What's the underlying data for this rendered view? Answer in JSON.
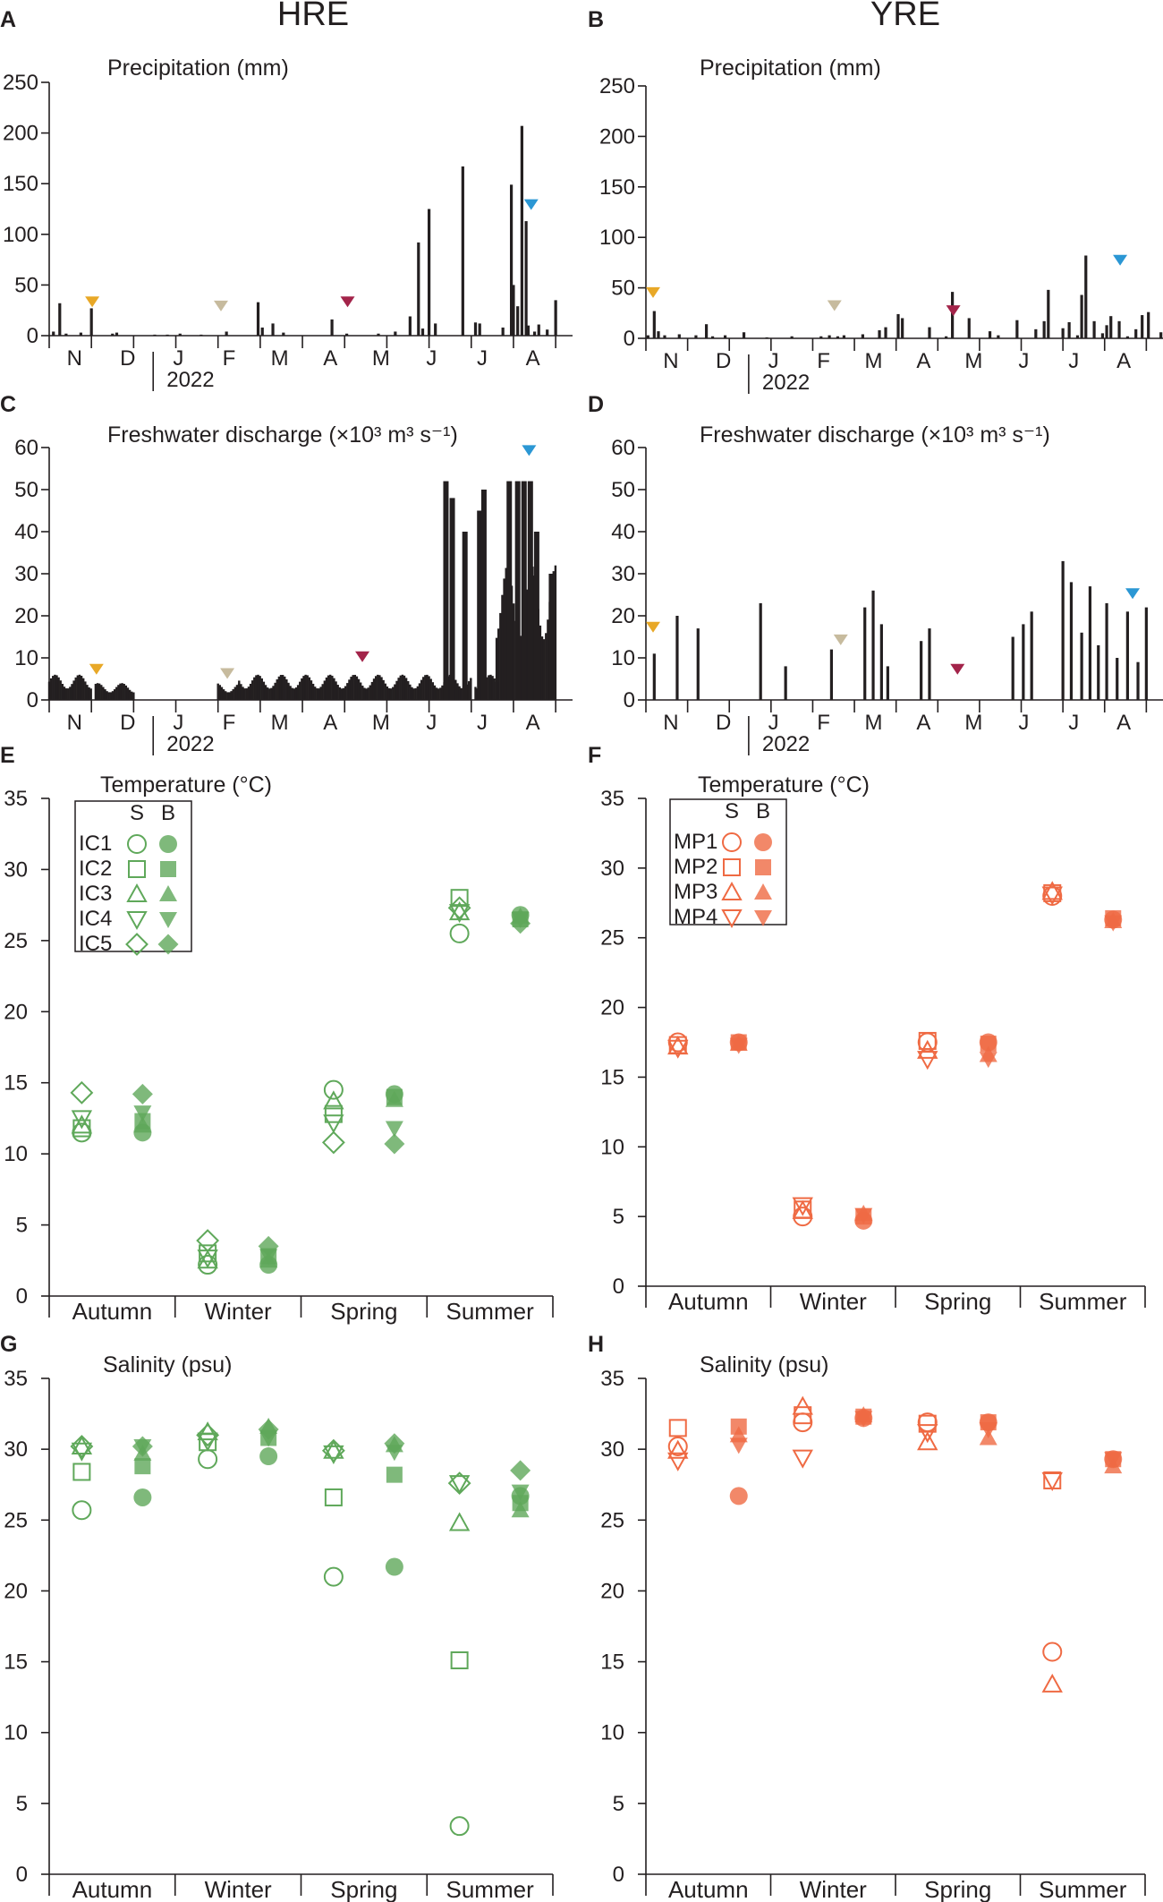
{
  "figure": {
    "site_titles": [
      "HRE",
      "YRE"
    ],
    "year_label": "2022",
    "months": [
      "N",
      "D",
      "J",
      "F",
      "M",
      "A",
      "M",
      "J",
      "J",
      "A"
    ],
    "seasons": [
      "Autumn",
      "Winter",
      "Spring",
      "Summer"
    ],
    "marker_columns": [
      "S",
      "B"
    ],
    "sampling_colors": {
      "autumn": "#e8a827",
      "winter": "#c7bb9e",
      "spring": "#a3244a",
      "summer": "#2b97d4"
    },
    "hre_color": "#5fa85a",
    "yre_color": "#ef6a43"
  },
  "chart_data": [
    {
      "panel": "A",
      "type": "bar",
      "site": "HRE",
      "title": "Precipitation (mm)",
      "ylim": [
        0,
        250
      ],
      "yticks": [
        0,
        50,
        100,
        150,
        200,
        250
      ],
      "x_unit": "month index (0 = start of November 2021)",
      "bars": [
        [
          0.1,
          4
        ],
        [
          0.25,
          32
        ],
        [
          0.4,
          2
        ],
        [
          0.75,
          3
        ],
        [
          1.0,
          27
        ],
        [
          1.5,
          2
        ],
        [
          1.6,
          3
        ],
        [
          2.5,
          1
        ],
        [
          2.8,
          1
        ],
        [
          3.1,
          2
        ],
        [
          3.6,
          1
        ],
        [
          4.2,
          4
        ],
        [
          4.95,
          33
        ],
        [
          5.05,
          8
        ],
        [
          5.3,
          12
        ],
        [
          5.55,
          3
        ],
        [
          6.7,
          16
        ],
        [
          7.05,
          2
        ],
        [
          7.8,
          2
        ],
        [
          8.2,
          4
        ],
        [
          8.55,
          19
        ],
        [
          8.75,
          92
        ],
        [
          8.85,
          7
        ],
        [
          9.0,
          125
        ],
        [
          9.15,
          12
        ],
        [
          9.8,
          167
        ],
        [
          10.1,
          13
        ],
        [
          10.2,
          12
        ],
        [
          10.75,
          8
        ],
        [
          10.95,
          149
        ],
        [
          11.0,
          50
        ],
        [
          11.1,
          29
        ],
        [
          11.2,
          207
        ],
        [
          11.3,
          113
        ],
        [
          11.35,
          10
        ],
        [
          11.5,
          4
        ],
        [
          11.6,
          11
        ],
        [
          11.8,
          6
        ],
        [
          12.0,
          35
        ]
      ],
      "sampling": [
        {
          "x": 0.85,
          "color": "autumn"
        },
        {
          "x": 3.9,
          "color": "winter"
        },
        {
          "x": 6.9,
          "color": "spring"
        },
        {
          "x": 11.25,
          "color": "summer"
        }
      ],
      "sampling_y": [
        28,
        24,
        28,
        124
      ]
    },
    {
      "panel": "B",
      "type": "bar",
      "site": "YRE",
      "title": "Precipitation (mm)",
      "ylim": [
        0,
        250
      ],
      "yticks": [
        0,
        50,
        100,
        150,
        200,
        250
      ],
      "bars": [
        [
          0.05,
          3
        ],
        [
          0.2,
          27
        ],
        [
          0.3,
          7
        ],
        [
          0.45,
          3
        ],
        [
          0.8,
          4
        ],
        [
          1.2,
          3
        ],
        [
          1.45,
          14
        ],
        [
          1.6,
          2
        ],
        [
          1.9,
          3
        ],
        [
          2.35,
          6
        ],
        [
          2.9,
          1
        ],
        [
          3.5,
          2
        ],
        [
          4.2,
          2
        ],
        [
          4.4,
          3
        ],
        [
          4.6,
          2
        ],
        [
          4.75,
          3
        ],
        [
          5.2,
          4
        ],
        [
          5.6,
          8
        ],
        [
          5.75,
          11
        ],
        [
          6.05,
          24
        ],
        [
          6.15,
          20
        ],
        [
          6.8,
          11
        ],
        [
          7.2,
          2
        ],
        [
          7.35,
          46
        ],
        [
          7.75,
          20
        ],
        [
          8.25,
          7
        ],
        [
          8.45,
          3
        ],
        [
          8.9,
          18
        ],
        [
          9.35,
          9
        ],
        [
          9.55,
          17
        ],
        [
          9.65,
          48
        ],
        [
          10.0,
          10
        ],
        [
          10.15,
          16
        ],
        [
          10.35,
          3
        ],
        [
          10.45,
          43
        ],
        [
          10.55,
          82
        ],
        [
          10.75,
          17
        ],
        [
          10.95,
          5
        ],
        [
          11.05,
          13
        ],
        [
          11.15,
          22
        ],
        [
          11.35,
          17
        ],
        [
          11.55,
          2
        ],
        [
          11.75,
          9
        ],
        [
          11.9,
          23
        ],
        [
          12.05,
          26
        ],
        [
          12.35,
          6
        ]
      ],
      "sampling": [
        {
          "x": 0.0,
          "color": "autumn"
        },
        {
          "x": 4.35,
          "color": "winter"
        },
        {
          "x": 7.2,
          "color": "spring"
        },
        {
          "x": 11.2,
          "color": "summer"
        }
      ],
      "sampling_y": [
        40,
        27,
        22,
        72
      ]
    },
    {
      "panel": "C",
      "type": "bar",
      "site": "HRE",
      "title": "Freshwater discharge (×10³ m³ s⁻¹)",
      "ylim": [
        0,
        60
      ],
      "yticks": [
        0,
        10,
        20,
        30,
        40,
        50,
        60
      ],
      "segments": [
        [
          0.0,
          1.0,
          6
        ],
        [
          1.1,
          2.0,
          4
        ],
        [
          4.0,
          4.5,
          4
        ],
        [
          4.5,
          10.0,
          6
        ],
        [
          10.1,
          10.6,
          6
        ],
        [
          10.6,
          12.0,
          32
        ]
      ],
      "peaks": [
        [
          9.4,
          52
        ],
        [
          9.55,
          48
        ],
        [
          9.85,
          40
        ],
        [
          10.2,
          45
        ],
        [
          10.3,
          50
        ],
        [
          10.9,
          52
        ],
        [
          11.1,
          52
        ],
        [
          11.25,
          52
        ],
        [
          11.4,
          52
        ],
        [
          11.55,
          40
        ],
        [
          11.9,
          30
        ]
      ],
      "sampling": [
        {
          "x": 0.95,
          "color": "autumn"
        },
        {
          "x": 4.05,
          "color": "winter"
        },
        {
          "x": 7.25,
          "color": "spring"
        },
        {
          "x": 11.2,
          "color": "summer"
        }
      ],
      "sampling_y": [
        6,
        5,
        9,
        58
      ]
    },
    {
      "panel": "D",
      "type": "bar",
      "site": "YRE",
      "title": "Freshwater discharge (×10³ m³ s⁻¹)",
      "ylim": [
        0,
        60
      ],
      "yticks": [
        0,
        10,
        20,
        30,
        40,
        50,
        60
      ],
      "bars": [
        [
          0.2,
          11
        ],
        [
          0.75,
          20
        ],
        [
          1.25,
          17
        ],
        [
          2.75,
          23
        ],
        [
          3.35,
          8
        ],
        [
          4.45,
          12
        ],
        [
          5.25,
          22
        ],
        [
          5.45,
          26
        ],
        [
          5.65,
          18
        ],
        [
          5.8,
          8
        ],
        [
          6.6,
          14
        ],
        [
          6.8,
          17
        ],
        [
          8.8,
          15
        ],
        [
          9.05,
          18
        ],
        [
          9.25,
          21
        ],
        [
          10.0,
          33
        ],
        [
          10.2,
          28
        ],
        [
          10.45,
          16
        ],
        [
          10.65,
          27
        ],
        [
          10.85,
          13
        ],
        [
          11.05,
          23
        ],
        [
          11.3,
          10
        ],
        [
          11.55,
          21
        ],
        [
          11.8,
          9
        ],
        [
          12.0,
          22
        ]
      ],
      "sampling": [
        {
          "x": 0.0,
          "color": "autumn"
        },
        {
          "x": 4.5,
          "color": "winter"
        },
        {
          "x": 7.3,
          "color": "spring"
        },
        {
          "x": 11.5,
          "color": "summer"
        }
      ],
      "sampling_y": [
        16,
        13,
        6,
        24
      ]
    },
    {
      "panel": "E",
      "type": "scatter",
      "site": "HRE",
      "title": "Temperature (°C)",
      "ylim": [
        0,
        35
      ],
      "yticks": [
        0,
        5,
        10,
        15,
        20,
        25,
        30,
        35
      ],
      "series_labels": [
        "IC1",
        "IC2",
        "IC3",
        "IC4",
        "IC5"
      ],
      "S": [
        [
          11.5,
          2.2,
          14.5,
          25.5
        ],
        [
          11.8,
          3.0,
          12.8,
          28.0
        ],
        [
          12.0,
          2.5,
          13.7,
          27.0
        ],
        [
          12.5,
          2.7,
          12.2,
          27.0
        ],
        [
          14.3,
          3.9,
          10.8,
          27.3
        ]
      ],
      "B": [
        [
          11.5,
          2.2,
          14.2,
          26.8
        ],
        [
          12.3,
          2.8,
          14.0,
          26.5
        ],
        [
          12.0,
          2.5,
          13.8,
          26.7
        ],
        [
          12.9,
          2.8,
          11.8,
          26.5
        ],
        [
          14.2,
          3.5,
          10.7,
          26.2
        ]
      ]
    },
    {
      "panel": "F",
      "type": "scatter",
      "site": "YRE",
      "title": "Temperature (°C)",
      "ylim": [
        0,
        35
      ],
      "yticks": [
        0,
        5,
        10,
        15,
        20,
        25,
        30,
        35
      ],
      "series_labels": [
        "MP1",
        "MP2",
        "MP3",
        "MP4"
      ],
      "S": [
        [
          17.5,
          5.0,
          17.5,
          28.0
        ],
        [
          17.3,
          5.5,
          17.6,
          28.2
        ],
        [
          17.2,
          5.4,
          16.9,
          28.3
        ],
        [
          17.1,
          5.8,
          16.3,
          28.1
        ]
      ],
      "B": [
        [
          17.5,
          4.7,
          17.5,
          26.3
        ],
        [
          17.5,
          5.0,
          17.4,
          26.4
        ],
        [
          17.4,
          5.2,
          16.6,
          26.2
        ],
        [
          17.3,
          5.1,
          16.3,
          26.1
        ]
      ]
    },
    {
      "panel": "G",
      "type": "scatter",
      "site": "HRE",
      "title": "Salinity (psu)",
      "ylim": [
        0,
        35
      ],
      "yticks": [
        0,
        5,
        10,
        15,
        20,
        25,
        30,
        35
      ],
      "S": [
        [
          25.7,
          29.3,
          21.0,
          3.4
        ],
        [
          28.4,
          30.5,
          26.6,
          15.1
        ],
        [
          30.2,
          31.2,
          29.9,
          24.8
        ],
        [
          29.9,
          30.6,
          29.7,
          27.6
        ],
        [
          30.2,
          31.0,
          29.9,
          27.6
        ]
      ],
      "B": [
        [
          26.6,
          29.5,
          21.7,
          26.7
        ],
        [
          28.8,
          30.8,
          28.2,
          26.2
        ],
        [
          29.7,
          31.6,
          30.3,
          25.7
        ],
        [
          30.2,
          30.8,
          29.8,
          27.0
        ],
        [
          30.2,
          31.4,
          30.4,
          28.5
        ]
      ]
    },
    {
      "panel": "H",
      "type": "scatter",
      "site": "YRE",
      "title": "Salinity (psu)",
      "ylim": [
        0,
        35
      ],
      "yticks": [
        0,
        5,
        10,
        15,
        20,
        25,
        30,
        35
      ],
      "S": [
        [
          30.2,
          31.9,
          31.9,
          15.7
        ],
        [
          31.5,
          32.4,
          31.8,
          27.8
        ],
        [
          29.9,
          33.0,
          30.5,
          13.4
        ],
        [
          29.2,
          29.4,
          31.2,
          27.8
        ]
      ],
      "B": [
        [
          26.7,
          32.2,
          31.9,
          29.3
        ],
        [
          31.6,
          32.3,
          31.9,
          29.3
        ],
        [
          31.0,
          32.4,
          30.8,
          28.8
        ],
        [
          30.3,
          32.2,
          31.4,
          29.3
        ]
      ]
    }
  ]
}
